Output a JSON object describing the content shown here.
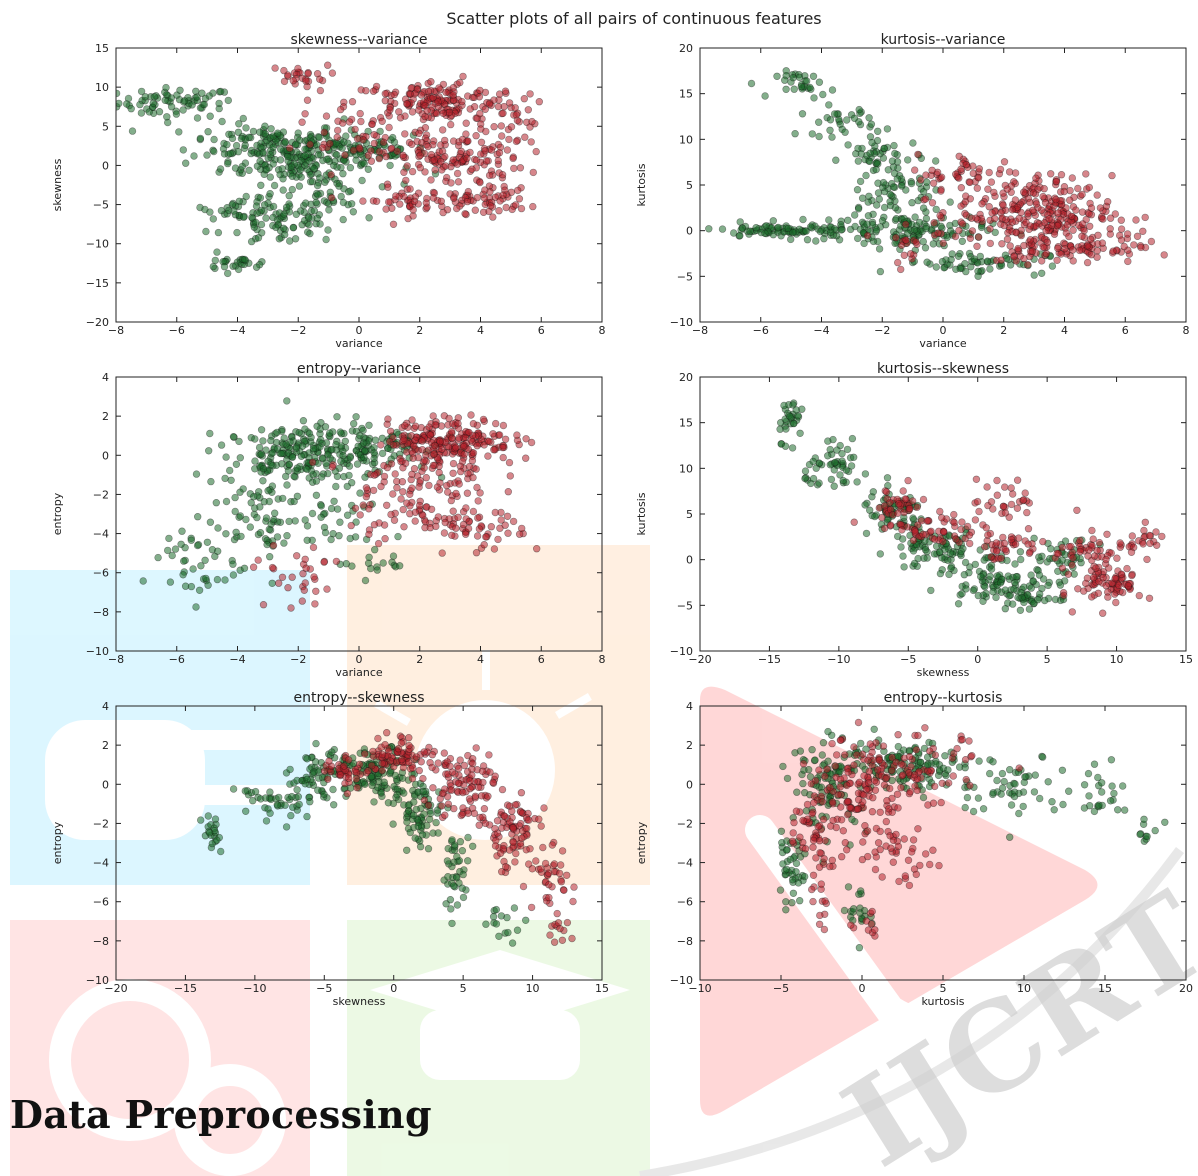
{
  "figure_title": "Scatter plots of all pairs of continuous features",
  "heading": "Data Preprocessing",
  "watermark_text": "IJCRT",
  "colors": {
    "class_a": "#1e6b2c",
    "class_b": "#b4222c"
  },
  "chart_data": [
    {
      "type": "scatter",
      "title": "skewness--variance",
      "xlabel": "variance",
      "ylabel": "skewness",
      "xlim": [
        -8,
        8
      ],
      "ylim": [
        -20,
        15
      ],
      "xticks": [
        -8,
        -6,
        -4,
        -2,
        0,
        2,
        4,
        6,
        8
      ],
      "yticks": [
        -20,
        -15,
        -10,
        -5,
        0,
        5,
        10,
        15
      ],
      "series": [
        {
          "clusters": [
            [
              -6,
              8,
              1.2,
              1.2,
              70
            ],
            [
              -3,
              3,
              1.6,
              1.5,
              120
            ],
            [
              -2,
              0,
              1.6,
              1.5,
              120
            ],
            [
              0,
              2,
              1.4,
              1.5,
              80
            ],
            [
              -2.5,
              -7,
              1.2,
              2.0,
              90
            ],
            [
              -4,
              -5.5,
              0.6,
              0.8,
              20
            ],
            [
              -4,
              -12.5,
              0.7,
              0.4,
              25
            ],
            [
              -1,
              -4,
              0.7,
              2.0,
              30
            ]
          ]
        },
        {
          "clusters": [
            [
              -2,
              11.5,
              0.6,
              0.8,
              25
            ],
            [
              2.5,
              8,
              1.8,
              1.8,
              180
            ],
            [
              3,
              1,
              1.5,
              2.5,
              150
            ],
            [
              4,
              -4.5,
              1.0,
              1.0,
              60
            ],
            [
              1.5,
              -4.5,
              1.0,
              1.2,
              40
            ],
            [
              -0.5,
              3,
              1.0,
              2.0,
              30
            ],
            [
              5.5,
              5,
              0.8,
              1.5,
              15
            ]
          ]
        }
      ]
    },
    {
      "type": "scatter",
      "title": "kurtosis--variance",
      "xlabel": "variance",
      "ylabel": "kurtosis",
      "xlim": [
        -8,
        8
      ],
      "ylim": [
        -10,
        20
      ],
      "xticks": [
        -8,
        -6,
        -4,
        -2,
        0,
        2,
        4,
        6,
        8
      ],
      "yticks": [
        -10,
        -5,
        0,
        5,
        10,
        15,
        20
      ],
      "series": [
        {
          "clusters": [
            [
              -4.5,
              16,
              0.6,
              0.9,
              30
            ],
            [
              -3.5,
              12,
              0.8,
              1.0,
              30
            ],
            [
              -2,
              8,
              0.8,
              1.5,
              50
            ],
            [
              -1.5,
              4,
              0.8,
              1.5,
              50
            ],
            [
              -5,
              0,
              1.8,
              0.5,
              100
            ],
            [
              -1,
              0,
              1.5,
              1.2,
              120
            ],
            [
              1,
              -3.5,
              1.5,
              0.8,
              60
            ]
          ]
        },
        {
          "clusters": [
            [
              3,
              2,
              1.6,
              2.5,
              250
            ],
            [
              1,
              6,
              1.2,
              1.5,
              50
            ],
            [
              4,
              -2,
              1.5,
              1.0,
              80
            ],
            [
              -1,
              -1,
              0.8,
              1.5,
              20
            ],
            [
              5.5,
              -1,
              0.8,
              1.0,
              20
            ]
          ]
        }
      ]
    },
    {
      "type": "scatter",
      "title": "entropy--variance",
      "xlabel": "variance",
      "ylabel": "entropy",
      "xlim": [
        -8,
        8
      ],
      "ylim": [
        -10,
        4
      ],
      "xticks": [
        -8,
        -6,
        -4,
        -2,
        0,
        2,
        4,
        6,
        8
      ],
      "yticks": [
        -10,
        -8,
        -6,
        -4,
        -2,
        0,
        2,
        4
      ],
      "series": [
        {
          "clusters": [
            [
              -2,
              0,
              1.5,
              0.9,
              180
            ],
            [
              0,
              0.5,
              1.5,
              0.8,
              100
            ],
            [
              -5.5,
              -5.5,
              1.0,
              1.3,
              40
            ],
            [
              -3.5,
              -3,
              1.0,
              1.5,
              60
            ],
            [
              -1,
              -3.5,
              1.2,
              1.0,
              40
            ],
            [
              0.5,
              -5.5,
              0.7,
              0.5,
              15
            ]
          ]
        },
        {
          "clusters": [
            [
              3,
              0.8,
              1.3,
              0.7,
              200
            ],
            [
              2,
              -1,
              1.5,
              0.9,
              80
            ],
            [
              2,
              -3,
              1.5,
              0.8,
              60
            ],
            [
              4,
              -4,
              1.0,
              0.7,
              40
            ],
            [
              -2,
              -7,
              0.5,
              0.9,
              15
            ],
            [
              -2,
              -5.5,
              1.0,
              0.6,
              15
            ]
          ]
        }
      ]
    },
    {
      "type": "scatter",
      "title": "kurtosis--skewness",
      "xlabel": "skewness",
      "ylabel": "kurtosis",
      "xlim": [
        -20,
        15
      ],
      "ylim": [
        -10,
        20
      ],
      "xticks": [
        -20,
        -15,
        -10,
        -5,
        0,
        5,
        10,
        15
      ],
      "yticks": [
        -10,
        -5,
        0,
        5,
        10,
        15,
        20
      ],
      "series": [
        {
          "clusters": [
            [
              -13.5,
              15.5,
              0.6,
              1.5,
              30
            ],
            [
              -10,
              10,
              1.5,
              1.5,
              50
            ],
            [
              -6,
              5,
              1.5,
              1.5,
              60
            ],
            [
              -3,
              1,
              2.0,
              1.5,
              80
            ],
            [
              1,
              -2,
              2.0,
              1.5,
              80
            ],
            [
              4,
              -4,
              1.2,
              1.0,
              40
            ],
            [
              6,
              0,
              1.5,
              1.5,
              40
            ]
          ]
        },
        {
          "clusters": [
            [
              -6,
              6,
              1.5,
              1.2,
              40
            ],
            [
              -3,
              3,
              2.0,
              1.2,
              50
            ],
            [
              2,
              1.5,
              2.0,
              1.0,
              40
            ],
            [
              2,
              6.5,
              1.5,
              1.5,
              30
            ],
            [
              9.5,
              -2.5,
              1.5,
              1.5,
              80
            ],
            [
              12,
              2,
              0.8,
              1.0,
              20
            ],
            [
              8,
              1,
              1.5,
              1.0,
              40
            ]
          ]
        }
      ]
    },
    {
      "type": "scatter",
      "title": "entropy--skewness",
      "xlabel": "skewness",
      "ylabel": "entropy",
      "xlim": [
        -20,
        15
      ],
      "ylim": [
        -10,
        4
      ],
      "xticks": [
        -20,
        -15,
        -10,
        -5,
        0,
        5,
        10,
        15
      ],
      "yticks": [
        -10,
        -8,
        -6,
        -4,
        -2,
        0,
        2,
        4
      ],
      "series": [
        {
          "clusters": [
            [
              -13,
              -2.5,
              0.5,
              0.7,
              20
            ],
            [
              -9,
              -1,
              1.5,
              0.7,
              40
            ],
            [
              -5,
              0.5,
              1.5,
              0.8,
              70
            ],
            [
              -1,
              0.5,
              1.5,
              0.8,
              100
            ],
            [
              2,
              -1.5,
              1.0,
              1.0,
              70
            ],
            [
              4.5,
              -4.5,
              0.6,
              1.2,
              40
            ],
            [
              8,
              -7,
              1.0,
              0.6,
              15
            ]
          ]
        },
        {
          "clusters": [
            [
              0.5,
              1.5,
              1.5,
              0.6,
              80
            ],
            [
              -3.5,
              0.7,
              1.0,
              0.5,
              40
            ],
            [
              5,
              0,
              1.5,
              1.2,
              100
            ],
            [
              8.5,
              -2.5,
              1.2,
              1.2,
              80
            ],
            [
              11,
              -5,
              1.2,
              1.2,
              40
            ],
            [
              12,
              -7.5,
              0.5,
              0.4,
              10
            ]
          ]
        }
      ]
    },
    {
      "type": "scatter",
      "title": "entropy--kurtosis",
      "xlabel": "kurtosis",
      "ylabel": "entropy",
      "xlim": [
        -10,
        20
      ],
      "ylim": [
        -10,
        4
      ],
      "xticks": [
        -10,
        -5,
        0,
        5,
        10,
        15,
        20
      ],
      "yticks": [
        -10,
        -8,
        -6,
        -4,
        -2,
        0,
        2,
        4
      ],
      "series": [
        {
          "clusters": [
            [
              -4.5,
              -4.5,
              0.6,
              1.0,
              40
            ],
            [
              -2,
              0,
              1.5,
              1.5,
              100
            ],
            [
              3,
              1,
              2.5,
              0.8,
              120
            ],
            [
              9,
              0,
              2.0,
              1.0,
              50
            ],
            [
              15,
              -0.5,
              1.5,
              0.8,
              25
            ],
            [
              17.5,
              -2.5,
              0.6,
              0.4,
              10
            ],
            [
              0,
              -6.5,
              0.5,
              1.0,
              20
            ]
          ]
        },
        {
          "clusters": [
            [
              -3,
              -2.5,
              1.0,
              1.5,
              50
            ],
            [
              0,
              0,
              1.5,
              1.5,
              120
            ],
            [
              4,
              0.5,
              2.0,
              1.2,
              60
            ],
            [
              2,
              -3.5,
              1.5,
              1.0,
              40
            ],
            [
              -2.5,
              -5.5,
              0.6,
              1.2,
              15
            ],
            [
              0.5,
              -7.5,
              0.5,
              0.5,
              10
            ]
          ]
        }
      ]
    }
  ]
}
